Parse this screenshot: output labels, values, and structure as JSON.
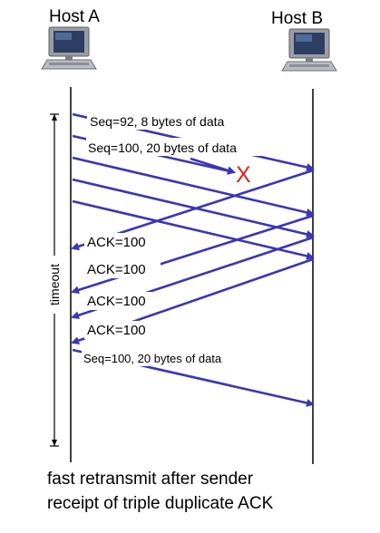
{
  "hosts": {
    "a": {
      "label": "Host A"
    },
    "b": {
      "label": "Host B"
    }
  },
  "segments": [
    {
      "label": "Seq=92, 8 bytes of data",
      "direction": "A-to-B",
      "delivered": true
    },
    {
      "label": "Seq=100, 20 bytes of data",
      "direction": "A-to-B",
      "delivered": false
    },
    {
      "label": "",
      "direction": "A-to-B",
      "delivered": true
    },
    {
      "label": "",
      "direction": "A-to-B",
      "delivered": true
    },
    {
      "label": "",
      "direction": "A-to-B",
      "delivered": true
    }
  ],
  "acks": [
    {
      "label": "ACK=100"
    },
    {
      "label": "ACK=100"
    },
    {
      "label": "ACK=100"
    },
    {
      "label": "ACK=100"
    }
  ],
  "retransmission": {
    "label": "Seq=100, 20 bytes of data"
  },
  "loss_marker": {
    "symbol": "X",
    "color": "#e8201c"
  },
  "timeout": {
    "label": "timeout"
  },
  "caption": {
    "line1": "fast retransmit after sender",
    "line2": "receipt of triple duplicate ACK"
  },
  "colors": {
    "arrow": "#3a36b4",
    "timeline": "#000000"
  }
}
